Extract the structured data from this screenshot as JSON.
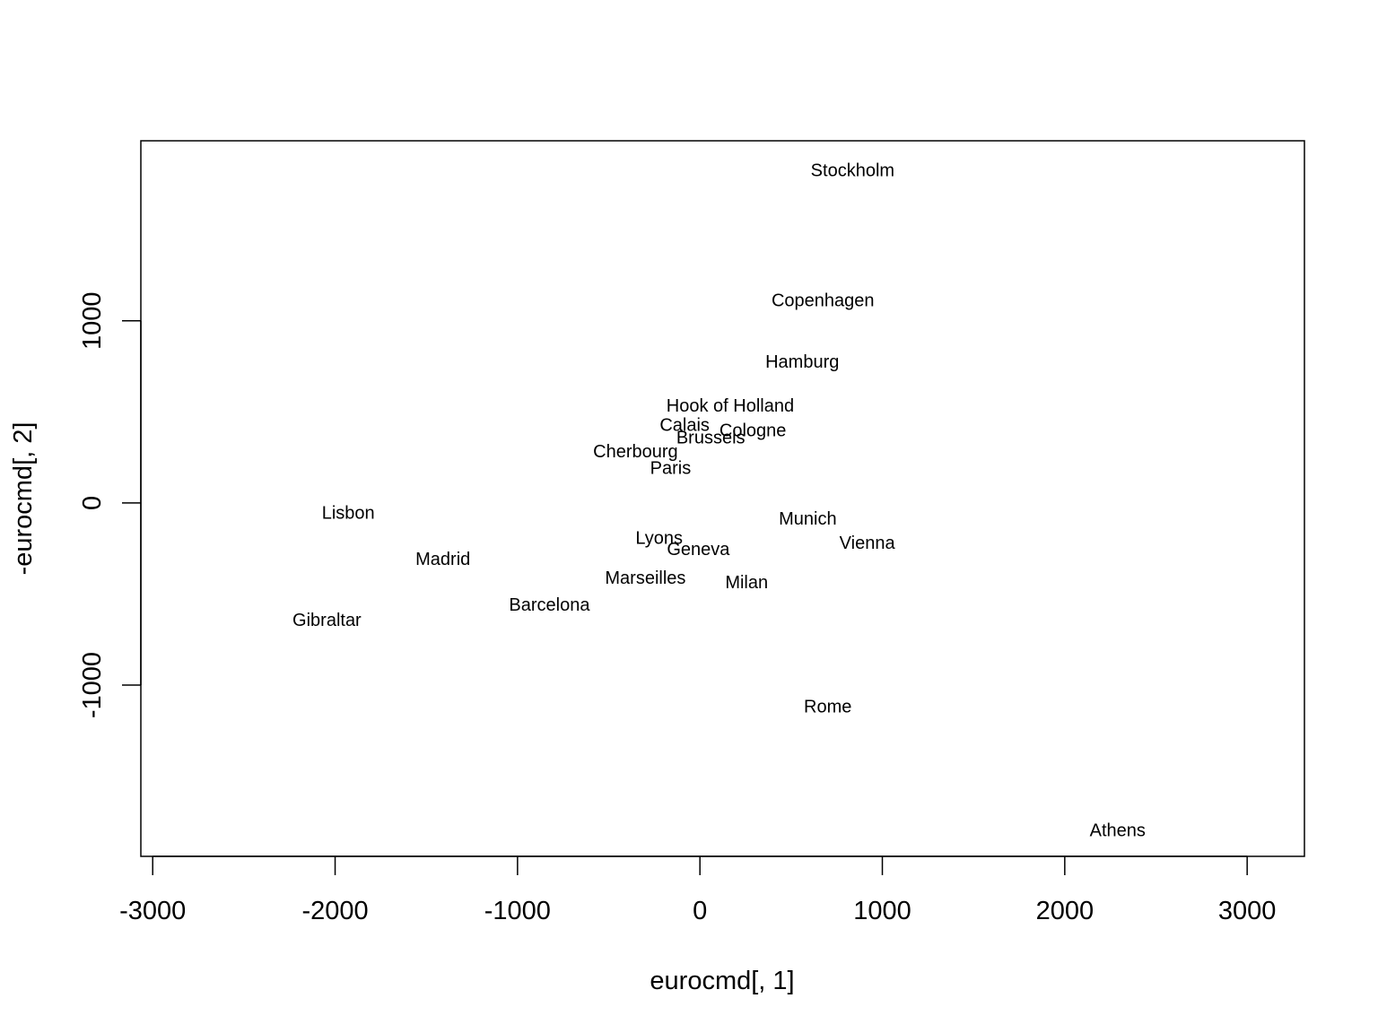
{
  "chart_data": {
    "type": "scatter",
    "title": "",
    "xlabel": "eurocmd[, 1]",
    "ylabel": "-eurocmd[, 2]",
    "xlim": [
      -3065,
      3314
    ],
    "ylim": [
      -1940,
      1988
    ],
    "x_ticks": [
      -3000,
      -2000,
      -1000,
      0,
      1000,
      2000,
      3000
    ],
    "y_ticks": [
      -1000,
      0,
      1000
    ],
    "grid": false,
    "points": [
      {
        "label": "Athens",
        "x": 2290,
        "y": -1799
      },
      {
        "label": "Barcelona",
        "x": -825,
        "y": -561
      },
      {
        "label": "Brussels",
        "x": 59,
        "y": 357
      },
      {
        "label": "Calais",
        "x": -84,
        "y": 425
      },
      {
        "label": "Cherbourg",
        "x": -353,
        "y": 280
      },
      {
        "label": "Cologne",
        "x": 290,
        "y": 396
      },
      {
        "label": "Copenhagen",
        "x": 674,
        "y": 1110
      },
      {
        "label": "Geneva",
        "x": -9,
        "y": -256
      },
      {
        "label": "Gibraltar",
        "x": -2045,
        "y": -646
      },
      {
        "label": "Hamburg",
        "x": 561,
        "y": 771
      },
      {
        "label": "Hook of Holland",
        "x": 166,
        "y": 531
      },
      {
        "label": "Lisbon",
        "x": -1928,
        "y": -58
      },
      {
        "label": "Lyons",
        "x": -224,
        "y": -196
      },
      {
        "label": "Madrid",
        "x": -1409,
        "y": -310
      },
      {
        "label": "Marseilles",
        "x": -299,
        "y": -414
      },
      {
        "label": "Milan",
        "x": 256,
        "y": -439
      },
      {
        "label": "Munich",
        "x": 591,
        "y": -89
      },
      {
        "label": "Paris",
        "x": -161,
        "y": 188
      },
      {
        "label": "Rome",
        "x": 701,
        "y": -1121
      },
      {
        "label": "Stockholm",
        "x": 837,
        "y": 1822
      },
      {
        "label": "Vienna",
        "x": 917,
        "y": -221
      }
    ]
  }
}
